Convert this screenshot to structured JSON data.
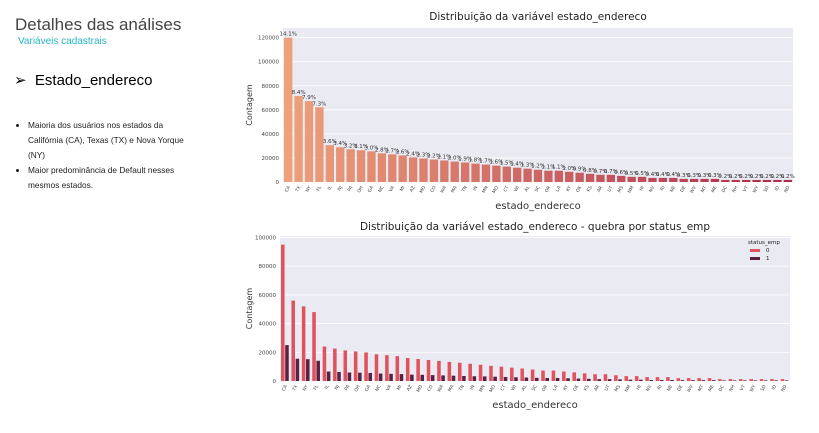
{
  "slide": {
    "title": "Detalhes das análises",
    "subtitle": "Variáveis cadastrais",
    "heading": "Estado_endereco",
    "bullets": [
      "Maioria dos usuários nos estados da Califórnia (CA), Texas (TX) e Nova Yorque (NY)",
      "Maior predominância de Default nesses mesmos estados."
    ]
  },
  "chart_data": [
    {
      "type": "bar",
      "title": "Distribuição da variável estado_endereco",
      "x_label": "estado_endereco",
      "y_label": "Contagem",
      "categories": [
        "CA",
        "TX",
        "NY",
        "FL",
        "IL",
        "NJ",
        "PA",
        "OH",
        "GA",
        "NC",
        "VA",
        "MI",
        "AZ",
        "MD",
        "CO",
        "WA",
        "MA",
        "TN",
        "IN",
        "MN",
        "MO",
        "CT",
        "WI",
        "AL",
        "SC",
        "OR",
        "LA",
        "KY",
        "OK",
        "KS",
        "AR",
        "UT",
        "MS",
        "NM",
        "HI",
        "NV",
        "RI",
        "NE",
        "DE",
        "WV",
        "MT",
        "ME",
        "DC",
        "NH",
        "VT",
        "WY",
        "SD",
        "ID",
        "ND"
      ],
      "values": [
        120000,
        71500,
        67200,
        62100,
        30600,
        28900,
        27200,
        26400,
        25500,
        23800,
        23000,
        22100,
        20400,
        19600,
        18700,
        17900,
        17000,
        16200,
        15300,
        14500,
        13600,
        12800,
        11900,
        11100,
        10200,
        9400,
        9400,
        8500,
        7700,
        6800,
        6000,
        6000,
        5100,
        4300,
        4300,
        3400,
        3400,
        3400,
        2600,
        2600,
        2600,
        2600,
        1700,
        1700,
        1700,
        1700,
        1700,
        1700,
        1700
      ],
      "percent_labels": [
        "14.1%",
        "8.4%",
        "7.9%",
        "7.3%",
        "3.6%",
        "3.4%",
        "3.2%",
        "3.1%",
        "3.0%",
        "2.8%",
        "2.7%",
        "2.6%",
        "2.4%",
        "2.3%",
        "2.2%",
        "2.1%",
        "2.0%",
        "1.9%",
        "1.8%",
        "1.7%",
        "1.6%",
        "1.5%",
        "1.4%",
        "1.3%",
        "1.2%",
        "1.1%",
        "1.1%",
        "1.0%",
        "0.9%",
        "0.8%",
        "0.7%",
        "0.7%",
        "0.6%",
        "0.5%",
        "0.5%",
        "0.4%",
        "0.4%",
        "0.4%",
        "0.3%",
        "0.3%",
        "0.3%",
        "0.3%",
        "0.2%",
        "0.2%",
        "0.2%",
        "0.2%",
        "0.2%",
        "0.2%",
        "0.2%"
      ],
      "palette": [
        "#eda07a",
        "#ad2a4c"
      ],
      "ylim": [
        0,
        128000
      ],
      "yticks": [
        0,
        20000,
        40000,
        60000,
        80000,
        100000,
        120000
      ]
    },
    {
      "type": "grouped-bar",
      "title": "Distribuição da variável estado_endereco - quebra por status_emp",
      "x_label": "estado_endereco",
      "y_label": "Contagem",
      "legend_title": "status_emp",
      "legend": "upper right",
      "categories": [
        "CA",
        "TX",
        "NY",
        "FL",
        "IL",
        "NJ",
        "PA",
        "OH",
        "GA",
        "NC",
        "VA",
        "MI",
        "AZ",
        "MD",
        "CO",
        "WA",
        "MA",
        "TN",
        "IN",
        "MN",
        "MO",
        "CT",
        "WI",
        "AL",
        "SC",
        "OR",
        "LA",
        "KY",
        "OK",
        "KS",
        "AR",
        "UT",
        "MS",
        "NM",
        "HI",
        "NV",
        "RI",
        "NE",
        "DE",
        "WV",
        "MT",
        "ME",
        "DC",
        "NH",
        "VT",
        "WY",
        "SD",
        "ID",
        "ND"
      ],
      "series": [
        {
          "name": "0",
          "color": "#e0525c",
          "values": [
            95000,
            56000,
            52000,
            48000,
            24000,
            22600,
            21300,
            20600,
            19900,
            18600,
            18000,
            17300,
            16000,
            15300,
            14600,
            14000,
            13300,
            12700,
            12000,
            11300,
            10600,
            10000,
            9300,
            8700,
            8000,
            7300,
            7300,
            6600,
            6000,
            5300,
            4700,
            4700,
            4000,
            3400,
            3400,
            2700,
            2700,
            2700,
            2000,
            2000,
            2000,
            2000,
            1300,
            1300,
            1300,
            1300,
            1300,
            1300,
            1300
          ]
        },
        {
          "name": "1",
          "color": "#5b1f42",
          "values": [
            25000,
            15500,
            15200,
            14100,
            6600,
            6300,
            5900,
            5800,
            5600,
            5200,
            5000,
            4800,
            4400,
            4300,
            4100,
            3900,
            3700,
            3500,
            3300,
            3200,
            3000,
            2800,
            2600,
            2400,
            2200,
            2100,
            2100,
            1900,
            1700,
            1500,
            1300,
            1300,
            1100,
            900,
            900,
            700,
            700,
            700,
            600,
            600,
            600,
            600,
            400,
            400,
            400,
            400,
            400,
            400,
            400
          ]
        }
      ],
      "ylim": [
        0,
        101000
      ],
      "yticks": [
        0,
        20000,
        40000,
        60000,
        80000,
        100000
      ]
    }
  ]
}
